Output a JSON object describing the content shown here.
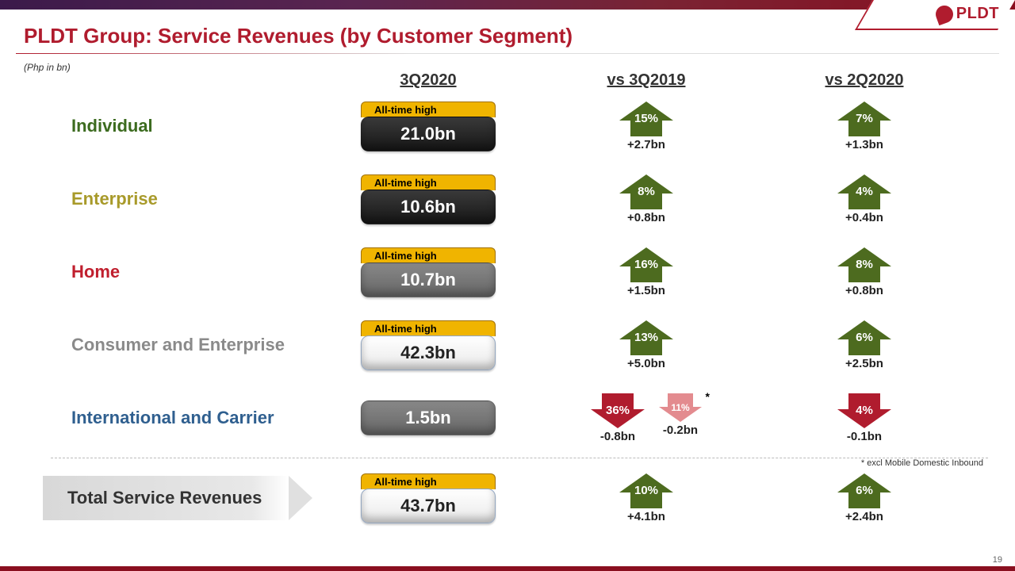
{
  "brand": "PLDT",
  "title": "PLDT Group:  Service Revenues (by Customer Segment)",
  "subtitle": "(Php in bn)",
  "columns": {
    "c1": "3Q2020",
    "c2": "vs 3Q2019",
    "c3": "vs 2Q2020"
  },
  "colors": {
    "arrow_up": "#4d6b1f",
    "arrow_down": "#b01c2e",
    "arrow_down_light": "#e38b8f",
    "individual": "#3c6b1f",
    "enterprise": "#a89a2a",
    "home": "#c01f2e",
    "consumer_ent": "#8a8a8a",
    "intl_carrier": "#2f5f8f",
    "total": "#333333"
  },
  "rows": [
    {
      "label": "Individual",
      "label_color_key": "individual",
      "badge": "All-time high",
      "value": "21.0bn",
      "pill": "dark",
      "vs2019": [
        {
          "dir": "up",
          "pct": "15%",
          "sub": "+2.7bn",
          "color": "up"
        }
      ],
      "vs2q20": [
        {
          "dir": "up",
          "pct": "7%",
          "sub": "+1.3bn",
          "color": "up"
        }
      ]
    },
    {
      "label": "Enterprise",
      "label_color_key": "enterprise",
      "badge": "All-time high",
      "value": "10.6bn",
      "pill": "dark",
      "vs2019": [
        {
          "dir": "up",
          "pct": "8%",
          "sub": "+0.8bn",
          "color": "up"
        }
      ],
      "vs2q20": [
        {
          "dir": "up",
          "pct": "4%",
          "sub": "+0.4bn",
          "color": "up"
        }
      ]
    },
    {
      "label": "Home",
      "label_color_key": "home",
      "badge": "All-time high",
      "value": "10.7bn",
      "pill": "grey",
      "vs2019": [
        {
          "dir": "up",
          "pct": "16%",
          "sub": "+1.5bn",
          "color": "up"
        }
      ],
      "vs2q20": [
        {
          "dir": "up",
          "pct": "8%",
          "sub": "+0.8bn",
          "color": "up"
        }
      ]
    },
    {
      "label": "Consumer and Enterprise",
      "label_color_key": "consumer_ent",
      "badge": "All-time high",
      "value": "42.3bn",
      "pill": "light",
      "vs2019": [
        {
          "dir": "up",
          "pct": "13%",
          "sub": "+5.0bn",
          "color": "up"
        }
      ],
      "vs2q20": [
        {
          "dir": "up",
          "pct": "6%",
          "sub": "+2.5bn",
          "color": "up"
        }
      ]
    },
    {
      "label": "International and Carrier",
      "label_color_key": "intl_carrier",
      "badge": "",
      "value": "1.5bn",
      "pill": "grey",
      "vs2019": [
        {
          "dir": "down",
          "pct": "36%",
          "sub": "-0.8bn",
          "color": "down"
        },
        {
          "dir": "down",
          "pct": "11%",
          "sub": "-0.2bn",
          "color": "down_light",
          "small": true,
          "asterisk": "*"
        }
      ],
      "vs2q20": [
        {
          "dir": "down",
          "pct": "4%",
          "sub": "-0.1bn",
          "color": "down"
        }
      ]
    }
  ],
  "total": {
    "label": "Total Service Revenues",
    "badge": "All-time high",
    "value": "43.7bn",
    "pill": "light",
    "vs2019": [
      {
        "dir": "up",
        "pct": "10%",
        "sub": "+4.1bn",
        "color": "up"
      }
    ],
    "vs2q20": [
      {
        "dir": "up",
        "pct": "6%",
        "sub": "+2.4bn",
        "color": "up"
      }
    ]
  },
  "footnote": "* excl  Mobile Domestic Inbound",
  "page_number": "19"
}
